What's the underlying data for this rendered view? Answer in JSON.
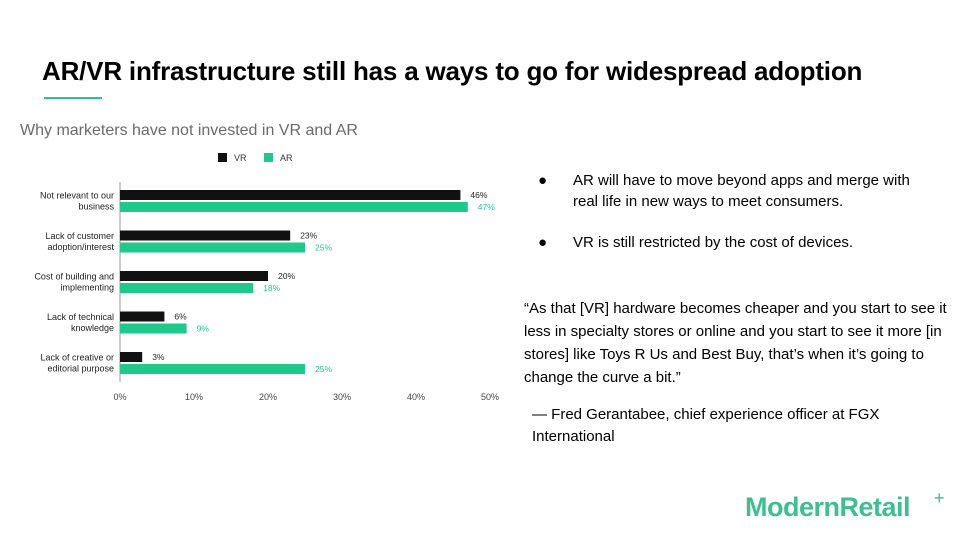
{
  "slide": {
    "title": "AR/VR infrastructure still has a ways to go for widespread adoption",
    "bullets": [
      "AR will have to move beyond apps and merge with real life in new ways to meet consumers.",
      "VR is still restricted by the cost of devices."
    ],
    "bullet_glyph": "●",
    "quote": "“As that [VR] hardware becomes cheaper and you start to see it less in specialty stores or online and you start to see it more [in stores] like Toys R Us and Best Buy, that’s when it’s going to change the curve a bit.”",
    "attribution": "— Fred Gerantabee, chief experience officer at FGX International",
    "logo_text": "ModernRetail",
    "logo_mark": "+"
  },
  "colors": {
    "accent": "#27c58b",
    "vr": "#111111",
    "ar": "#1fc88b",
    "ar_label": "#1fc88b"
  },
  "chart_data": {
    "type": "bar",
    "orientation": "horizontal",
    "title": "Why marketers have not invested in VR and AR",
    "categories": [
      [
        "Not relevant to our",
        "business"
      ],
      [
        "Lack of customer",
        "adoption/interest"
      ],
      [
        "Cost of building and",
        "implementing"
      ],
      [
        "Lack of technical",
        "knowledge"
      ],
      [
        "Lack of creative or",
        "editorial purpose"
      ]
    ],
    "series": [
      {
        "name": "VR",
        "values": [
          46,
          23,
          20,
          6,
          3
        ],
        "labels": [
          "46%",
          "23%",
          "20%",
          "6%",
          "3%"
        ]
      },
      {
        "name": "AR",
        "values": [
          47,
          25,
          18,
          9,
          25
        ],
        "labels": [
          "47%",
          "25%",
          "18%",
          "9%",
          "25%"
        ]
      }
    ],
    "xlim": [
      0,
      50
    ],
    "xticks": [
      "0%",
      "10%",
      "20%",
      "30%",
      "40%",
      "50%"
    ],
    "legend_position": "top-center",
    "grid": false
  }
}
